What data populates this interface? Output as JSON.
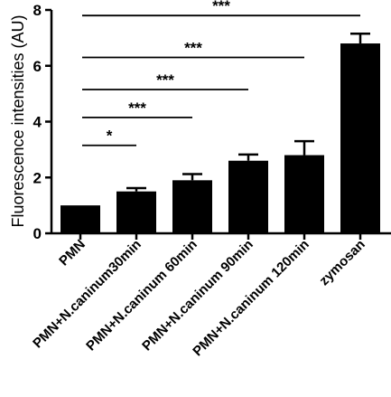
{
  "chart_data": {
    "type": "bar",
    "title": "",
    "xlabel": "",
    "ylabel": "Fluorescence intensities (AU)",
    "ylim": [
      0,
      8
    ],
    "yticks": [
      0,
      2,
      4,
      6,
      8
    ],
    "categories": [
      "PMN",
      "PMN+N.caninum30min",
      "PMN+N.caninum 60min",
      "PMN+N.caninum 90min",
      "PMN+N.caninum 120min",
      "zymosan"
    ],
    "values": [
      1.0,
      1.5,
      1.9,
      2.6,
      2.8,
      6.8
    ],
    "errors": [
      0.0,
      0.12,
      0.22,
      0.22,
      0.5,
      0.35
    ],
    "bar_color": "#000000",
    "grid": false,
    "legend": "none",
    "significance": [
      {
        "from": 0,
        "to": 1,
        "y": 3.15,
        "label": "*"
      },
      {
        "from": 0,
        "to": 2,
        "y": 4.15,
        "label": "***"
      },
      {
        "from": 0,
        "to": 3,
        "y": 5.15,
        "label": "***"
      },
      {
        "from": 0,
        "to": 4,
        "y": 6.3,
        "label": "***"
      },
      {
        "from": 0,
        "to": 5,
        "y": 7.8,
        "label": "***"
      }
    ]
  }
}
